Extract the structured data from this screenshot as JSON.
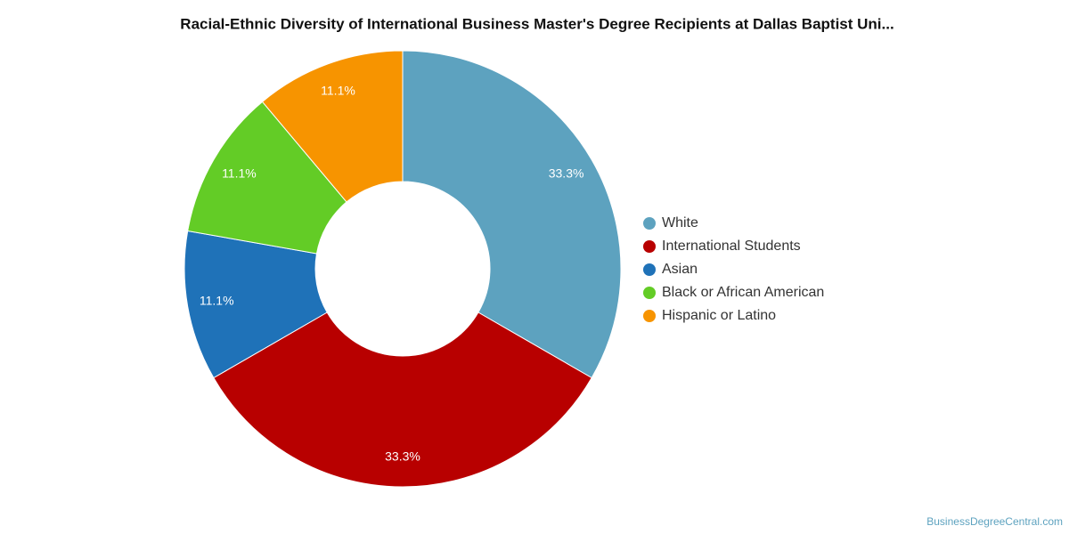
{
  "chart_data": {
    "type": "pie",
    "title": "Racial-Ethnic Diversity of International Business Master's Degree Recipients at Dallas Baptist Uni...",
    "categories": [
      "White",
      "International Students",
      "Asian",
      "Black or African American",
      "Hispanic or Latino"
    ],
    "values": [
      33.3,
      33.3,
      11.1,
      11.1,
      11.1
    ],
    "value_labels": [
      "33.3%",
      "33.3%",
      "11.1%",
      "11.1%",
      "11.1%"
    ],
    "colors": [
      "#5da2bf",
      "#b80000",
      "#1f72b8",
      "#63cc26",
      "#f79400"
    ],
    "legend": "right",
    "source": "BusinessDegreeCentral.com"
  }
}
